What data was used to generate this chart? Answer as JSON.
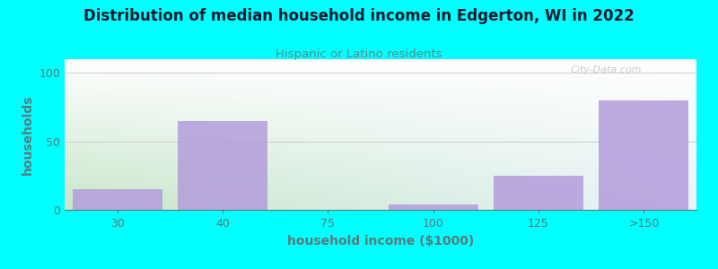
{
  "title": "Distribution of median household income in Edgerton, WI in 2022",
  "subtitle": "Hispanic or Latino residents",
  "xlabel": "household income ($1000)",
  "ylabel": "households",
  "categories": [
    "30",
    "40",
    "75",
    "100",
    "125",
    ">150"
  ],
  "values": [
    15,
    65,
    0,
    4,
    25,
    80
  ],
  "bar_color": "#b39ddb",
  "bar_alpha": 0.85,
  "bg_color": "#00ffff",
  "plot_bg_colors": [
    "#c8e6c9",
    "#e8f5e9",
    "#ffffff",
    "#e8f3f8"
  ],
  "title_color": "#1a1a2e",
  "subtitle_color": "#5b8a8a",
  "axis_label_color": "#5b7a7a",
  "tick_color": "#5b7a7a",
  "watermark": "City-Data.com",
  "ylim": [
    0,
    110
  ],
  "yticks": [
    0,
    50,
    100
  ],
  "grid_color": "#cccccc",
  "bar_width": 0.85
}
